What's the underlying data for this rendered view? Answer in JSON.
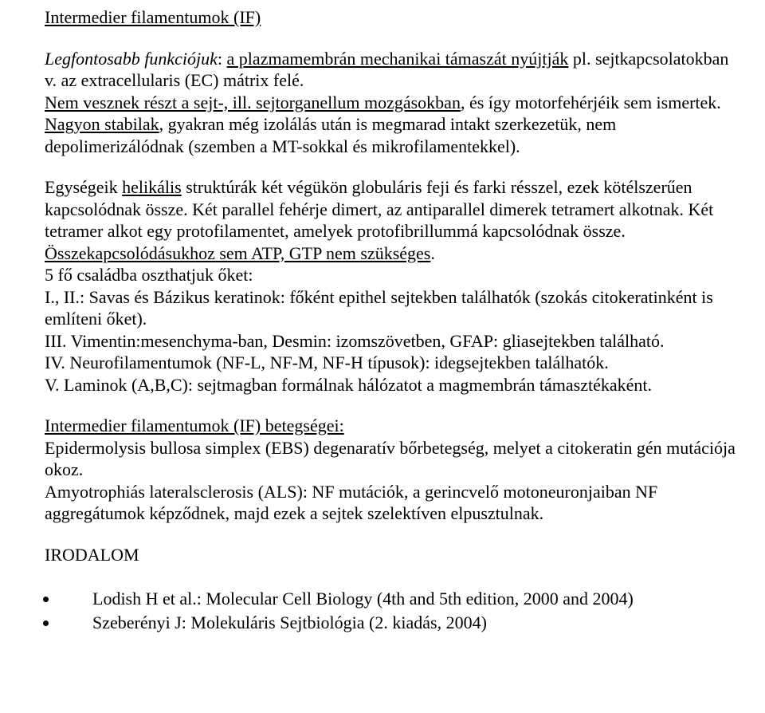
{
  "title": "Intermedier filamentumok (IF)",
  "p1_a_it": "Legfontosabb funkciójuk",
  "p1_b": ": ",
  "p1_c_ul": "a plazmamembrán mechanikai támaszát nyújtják",
  "p1_d": " pl. sejtkapcsolatokban v. az extracellularis (EC) mátrix felé.",
  "p2_a_ul": "Nem vesznek részt a sejt-, ill. sejtorganellum mozgásokban",
  "p2_b": ", és így motorfehérjéik sem ismertek.",
  "p3_a_ul": "Nagyon stabilak",
  "p3_b": ", gyakran még izolálás után is megmarad intakt szerkezetük, nem depolimerizálódnak (szemben a MT-sokkal és mikrofilamentekkel).",
  "p4_a": "Egységeik ",
  "p4_b_ul": "helikális",
  "p4_c": " struktúrák két végükön globuláris feji és farki résszel, ezek kötélszerűen kapcsolódnak össze. Két parallel fehérje dimert, az antiparallel dimerek tetramert alkotnak. Két tetramer alkot egy protofilamentet, amelyek protofibrillummá kapcsolódnak össze. ",
  "p4_d_ul": "Összekapcsolódásukhoz sem ATP, GTP nem szükséges",
  "p4_e": ".",
  "p5": "5 fő családba oszthatjuk őket:",
  "p6": "I., II.: Savas és Bázikus keratinok: főként epithel sejtekben találhatók (szokás citokeratinként is említeni őket).",
  "p7": "III. Vimentin:mesenchyma-ban, Desmin: izomszövetben, GFAP: gliasejtekben található.",
  "p8": "IV. Neurofilamentumok (NF-L, NF-M, NF-H típusok): idegsejtekben találhatók.",
  "p9": "V. Laminok (A,B,C): sejtmagban formálnak hálózatot a magmembrán támasztékaként.",
  "p10_ul": "Intermedier filamentumok (IF) betegségei:",
  "p11": "Epidermolysis bullosa simplex (EBS) degenaratív bőrbetegség, melyet a citokeratin gén mutációja okoz.",
  "p12": "Amyotrophiás lateralsclerosis (ALS): NF mutációk, a gerincvelő motoneuronjaiban NF aggregátumok képződnek, majd ezek a sejtek szelektíven elpusztulnak.",
  "irodalom": "IRODALOM",
  "biblio": [
    "Lodish H et al.: Molecular Cell Biology (4th and 5th edition, 2000 and 2004)",
    "Szeberényi J: Molekuláris Sejtbiológia (2. kiadás, 2004)"
  ]
}
